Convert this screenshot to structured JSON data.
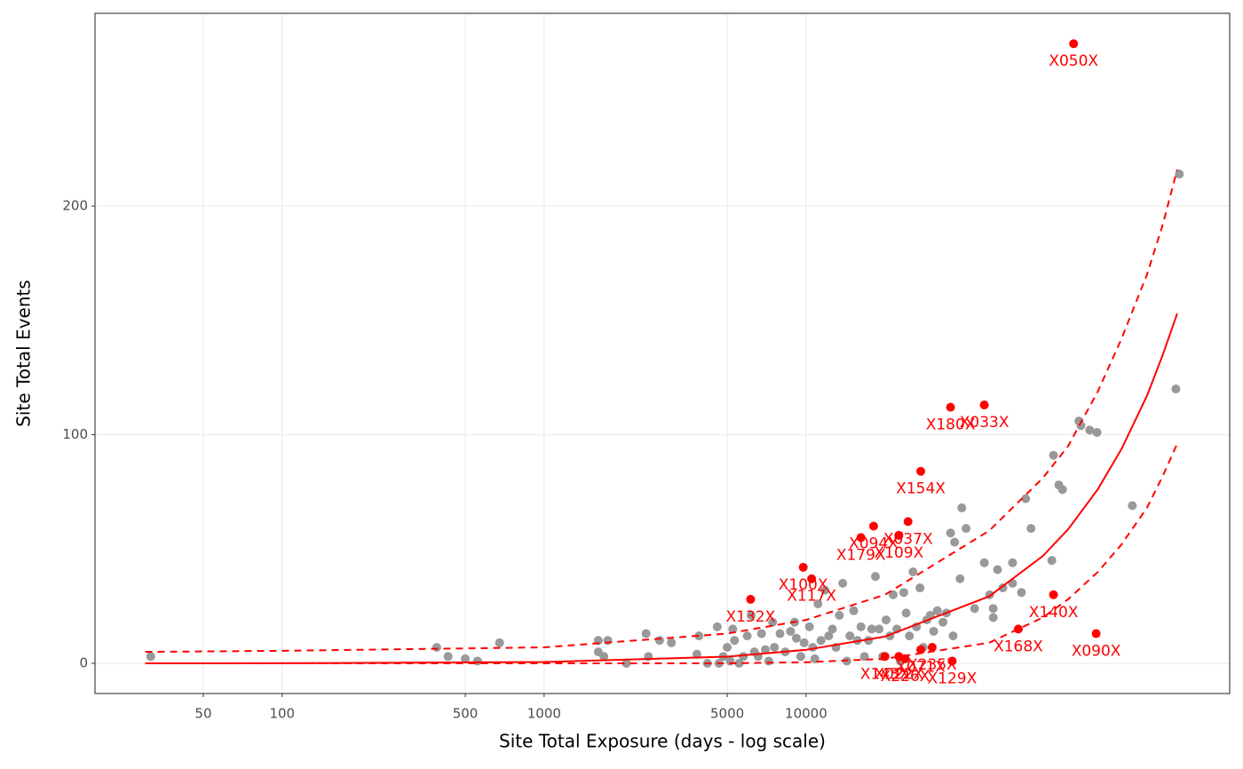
{
  "chart_data": {
    "type": "scatter",
    "xlabel": "Site Total Exposure (days - log scale)",
    "ylabel": "Site Total Events",
    "xlog": true,
    "xlim": [
      19.3,
      414000
    ],
    "ylim": [
      -13.2,
      284.3
    ],
    "xticks": [
      50,
      100,
      500,
      1000,
      5000,
      10000
    ],
    "yticks": [
      0,
      100,
      200
    ],
    "grid": true,
    "series": [
      {
        "color": "#999999",
        "x": [
          31.5,
          389,
          430,
          500,
          557,
          676,
          1610,
          1750,
          1610,
          1690,
          2060,
          2450,
          2500,
          2760,
          3060,
          3830,
          3900,
          4200,
          4580,
          4650,
          4830,
          5000,
          5130,
          5250,
          5330,
          5550,
          5760,
          5960,
          6170,
          6350,
          6560,
          6760,
          6990,
          7200,
          7450,
          7570,
          7950,
          8330,
          8720,
          9040,
          9180,
          9540,
          9830,
          10300,
          10600,
          10800,
          11100,
          11400,
          11800,
          12200,
          12600,
          13000,
          13400,
          13800,
          14300,
          14700,
          15200,
          15700,
          16200,
          16700,
          17300,
          17800,
          18400,
          19000,
          19600,
          20200,
          20900,
          21500,
          22200,
          22900,
          23600,
          24100,
          24800,
          25600,
          26400,
          27200,
          28000,
          28900,
          29800,
          30700,
          31700,
          33300,
          34300,
          35600,
          36400,
          36900,
          38700,
          39300,
          40800,
          44000,
          47900,
          50200,
          51800,
          51800,
          53800,
          56400,
          61400,
          61400,
          66400,
          68900,
          72200,
          86700,
          88000,
          92200,
          95200,
          110000,
          112000,
          121000,
          129000,
          176000,
          258000,
          266000
        ],
        "y": [
          3,
          7,
          3,
          2,
          1,
          9,
          10,
          10,
          5,
          3,
          0,
          13,
          3,
          10,
          9,
          4,
          12,
          0,
          16,
          0,
          3,
          7,
          1,
          15,
          10,
          0,
          3,
          12,
          21,
          5,
          3,
          13,
          6,
          1,
          18,
          7,
          13,
          5,
          14,
          18,
          11,
          3,
          9,
          16,
          7,
          2,
          26,
          10,
          32,
          12,
          15,
          7,
          21,
          35,
          1,
          12,
          23,
          10,
          16,
          3,
          10,
          15,
          38,
          15,
          3,
          19,
          12,
          30,
          15,
          1,
          31,
          22,
          12,
          40,
          16,
          33,
          7,
          19,
          21,
          14,
          23,
          18,
          22,
          57,
          12,
          53,
          37,
          68,
          59,
          24,
          44,
          30,
          24,
          20,
          41,
          33,
          44,
          35,
          31,
          72,
          59,
          45,
          91,
          78,
          76,
          106,
          104,
          102,
          101,
          69,
          120,
          214
        ]
      },
      {
        "color": "#ff0000",
        "x": [
          105000,
          35600,
          47900,
          27400,
          16200,
          18100,
          22600,
          24500,
          9750,
          10500,
          6140,
          88000,
          64600,
          128000,
          36100,
          20000,
          22600,
          23900,
          27400,
          30300
        ],
        "y": [
          271,
          112,
          113,
          84,
          55,
          60,
          56,
          62,
          42,
          37,
          28,
          30,
          15,
          13,
          1,
          3,
          3,
          2,
          6,
          7
        ],
        "labels": [
          "X050X",
          "X180X",
          "X033X",
          "X154X",
          "X179X",
          "X094X",
          "X109X",
          "X037X",
          "X100X",
          "X117X",
          "X132X",
          "X140X",
          "X168X",
          "X090X",
          "X129X",
          "X143X",
          "X022X",
          "X226X",
          "X071X",
          "X235X"
        ]
      }
    ],
    "lines": [
      {
        "color": "#ff0000",
        "dashed": false,
        "x": [
          30,
          100,
          1000,
          5000,
          10000,
          20000,
          50000,
          80000,
          100000,
          130000,
          160000,
          200000,
          230000,
          261000
        ],
        "y": [
          0.02,
          0.06,
          0.59,
          2.9,
          5.9,
          11.7,
          29.3,
          46.9,
          58.6,
          76.2,
          93.8,
          117,
          135,
          153
        ]
      },
      {
        "color": "#ff0000",
        "dashed": true,
        "x": [
          30,
          100,
          1000,
          5000,
          10000,
          20000,
          50000,
          80000,
          100000,
          130000,
          160000,
          200000,
          230000,
          261000
        ],
        "y": [
          5,
          5.5,
          7,
          13,
          19,
          30,
          58,
          81,
          95,
          119,
          142,
          170,
          192,
          216
        ]
      },
      {
        "color": "#ff0000",
        "dashed": true,
        "x": [
          30,
          100,
          1000,
          5000,
          10000,
          20000,
          50000,
          80000,
          100000,
          130000,
          160000,
          200000,
          230000,
          261000
        ],
        "y": [
          0,
          0,
          0,
          0,
          0.5,
          2,
          9,
          20,
          28,
          40,
          52,
          68,
          82,
          96
        ]
      }
    ]
  }
}
